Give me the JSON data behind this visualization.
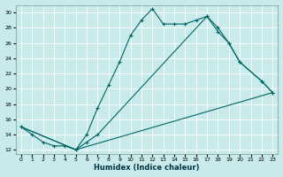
{
  "xlabel": "Humidex (Indice chaleur)",
  "bg_color": "#c8eaea",
  "grid_color": "#b0d8d8",
  "line_color": "#006666",
  "xlim": [
    -0.5,
    23.5
  ],
  "ylim": [
    11.5,
    31
  ],
  "yticks": [
    12,
    14,
    16,
    18,
    20,
    22,
    24,
    26,
    28,
    30
  ],
  "xticks": [
    0,
    1,
    2,
    3,
    4,
    5,
    6,
    7,
    8,
    9,
    10,
    11,
    12,
    13,
    14,
    15,
    16,
    17,
    18,
    19,
    20,
    21,
    22,
    23
  ],
  "line1_x": [
    0,
    1,
    2,
    3,
    4,
    5,
    6,
    7,
    8,
    9,
    10,
    11,
    12,
    13,
    14,
    15,
    16,
    17,
    18,
    19,
    20,
    22,
    23
  ],
  "line1_y": [
    15,
    14,
    13,
    12.5,
    12.5,
    12,
    14,
    17.5,
    20.5,
    23.5,
    27,
    29,
    30.5,
    28.5,
    28.5,
    28.5,
    29,
    29.5,
    28,
    26,
    23.5,
    21,
    19.5
  ],
  "line2_x": [
    0,
    5,
    23
  ],
  "line2_y": [
    15,
    12,
    19.5
  ],
  "line3_x": [
    0,
    5,
    6,
    7,
    17,
    18,
    19,
    20,
    22,
    23
  ],
  "line3_y": [
    15,
    12,
    13,
    14,
    29.5,
    27.5,
    26,
    23.5,
    21,
    19.5
  ]
}
